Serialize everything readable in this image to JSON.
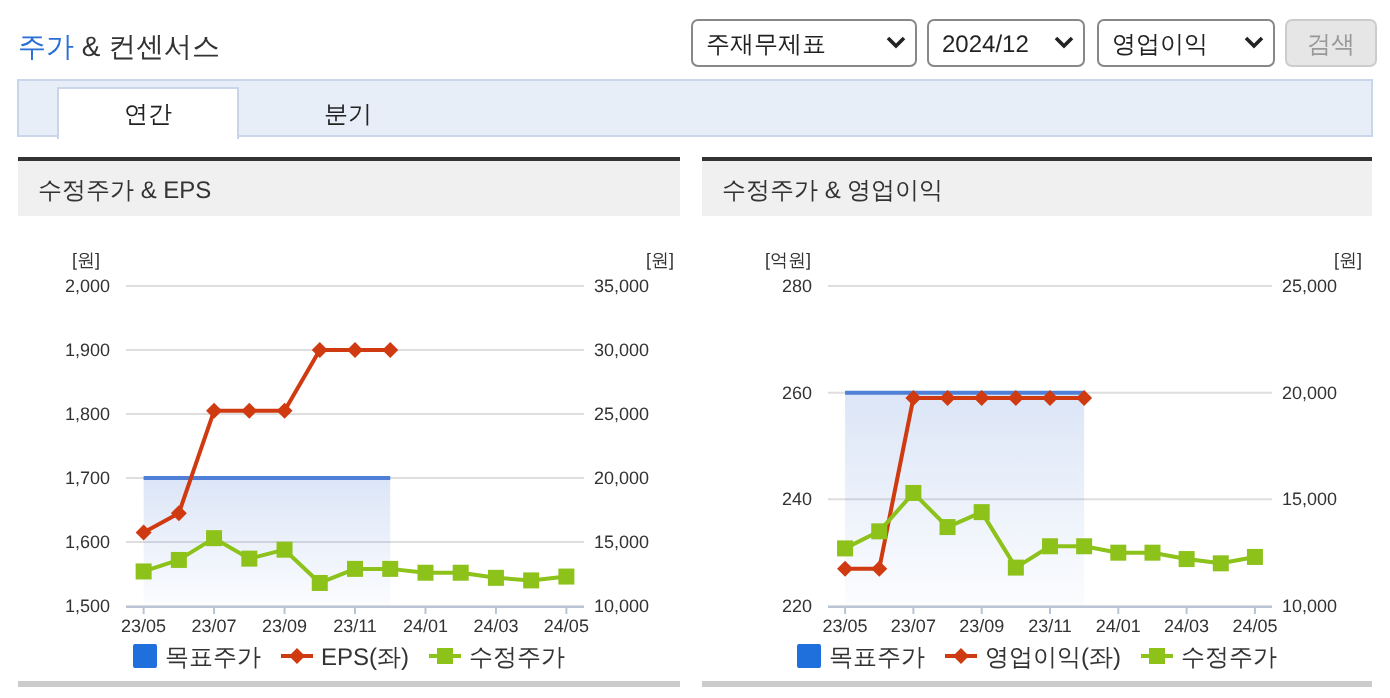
{
  "chart_data": [
    {
      "type": "line",
      "title": "수정주가 & EPS",
      "ylabel": "[원]",
      "y2label": "[원]",
      "annotations": [
        "주가 & 컨센서스",
        "주재무제표",
        "2024/12",
        "영업이익",
        "검색",
        "연간",
        "분기"
      ],
      "categories": [
        "23/05",
        null,
        "23/07",
        null,
        "23/09",
        null,
        "23/11",
        null,
        "24/01",
        null,
        "24/03",
        null,
        "24/05"
      ],
      "ylim": [
        1500,
        2000
      ],
      "yticks": [
        {
          "value": 1500,
          "label": "1,500"
        },
        {
          "value": 1600,
          "label": "1,600"
        },
        {
          "value": 1700,
          "label": "1,700"
        },
        {
          "value": 1800,
          "label": "1,800"
        },
        {
          "value": 1900,
          "label": "1,900"
        },
        {
          "value": 2000,
          "label": "2,000"
        }
      ],
      "y2lim": [
        10000,
        35000
      ],
      "y2ticks": [
        {
          "value": 10000,
          "label": "10,000"
        },
        {
          "value": 15000,
          "label": "15,000"
        },
        {
          "value": 20000,
          "label": "20,000"
        },
        {
          "value": 25000,
          "label": "25,000"
        },
        {
          "value": 30000,
          "label": "30,000"
        },
        {
          "value": 35000,
          "label": "35,000"
        }
      ],
      "grid": "y",
      "legend": "bottom",
      "series": [
        {
          "name": "목표주가",
          "type": "area",
          "color": "#4f7fd6",
          "axis": "y2",
          "marker": "none",
          "values": [
            20000,
            20000,
            20000,
            20000,
            20000,
            20000,
            20000,
            20000,
            null,
            null,
            null,
            null,
            null
          ]
        },
        {
          "name": "EPS(좌)",
          "type": "line",
          "color": "#d03a10",
          "marker": "diamond",
          "values": [
            1615,
            1645,
            1805,
            1805,
            1805,
            1900,
            1900,
            1900,
            null,
            null,
            null,
            null,
            null
          ]
        },
        {
          "name": "수정주가",
          "type": "line",
          "color": "#8cc21a",
          "axis": "y2",
          "marker": "square",
          "values": [
            12700,
            13600,
            15300,
            13700,
            14400,
            11800,
            12900,
            12900,
            12600,
            12600,
            12200,
            12000,
            12300
          ]
        }
      ]
    },
    {
      "type": "line",
      "title": "수정주가 & 영업이익",
      "ylabel": "[억원]",
      "y2label": "[원]",
      "categories": [
        "23/05",
        null,
        "23/07",
        null,
        "23/09",
        null,
        "23/11",
        null,
        "24/01",
        null,
        "24/03",
        null,
        "24/05"
      ],
      "ylim": [
        220,
        280
      ],
      "yticks": [
        220,
        240,
        260,
        280
      ],
      "y2lim": [
        10000,
        25000
      ],
      "y2ticks": [
        {
          "value": 10000,
          "label": "10,000"
        },
        {
          "value": 15000,
          "label": "15,000"
        },
        {
          "value": 20000,
          "label": "20,000"
        },
        {
          "value": 25000,
          "label": "25,000"
        }
      ],
      "grid": "y",
      "legend": "bottom",
      "series": [
        {
          "name": "목표주가",
          "type": "area",
          "color": "#4f7fd6",
          "axis": "y2",
          "marker": "none",
          "values": [
            20000,
            20000,
            20000,
            20000,
            20000,
            20000,
            20000,
            20000,
            null,
            null,
            null,
            null,
            null
          ]
        },
        {
          "name": "영업이익(좌)",
          "type": "line",
          "color": "#d03a10",
          "marker": "diamond",
          "values": [
            227,
            227,
            259,
            259,
            259,
            259,
            259,
            259,
            null,
            null,
            null,
            null,
            null
          ]
        },
        {
          "name": "수정주가",
          "type": "line",
          "color": "#8cc21a",
          "axis": "y2",
          "marker": "square",
          "values": [
            12700,
            13500,
            15300,
            13700,
            14400,
            11800,
            12800,
            12800,
            12500,
            12500,
            12200,
            12000,
            12300
          ]
        }
      ]
    }
  ]
}
